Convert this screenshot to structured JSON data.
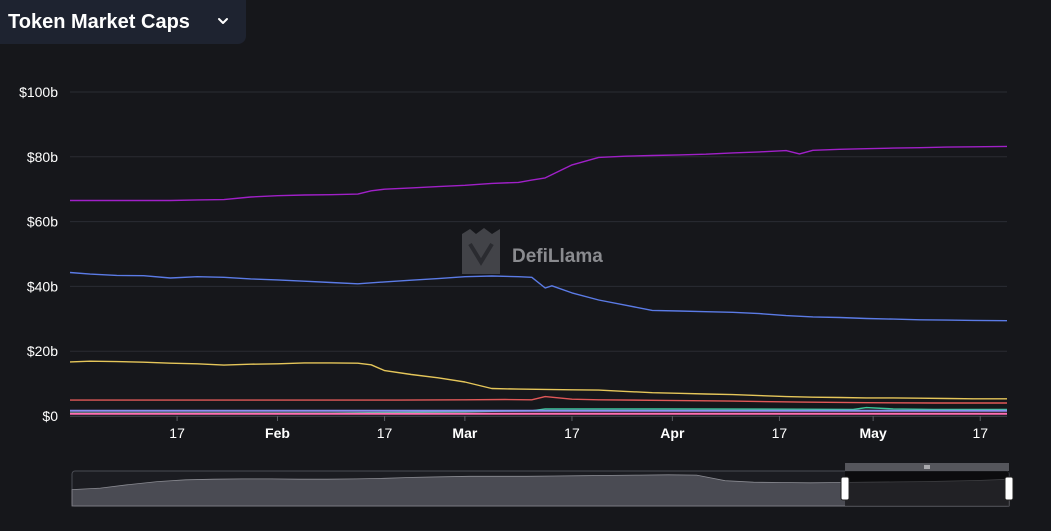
{
  "header": {
    "title": "Token Market Caps"
  },
  "watermark": "DefiLlama",
  "chart_data": {
    "type": "line",
    "ylim": [
      0,
      100
    ],
    "y_ticks": [
      {
        "value": 0,
        "label": "$0"
      },
      {
        "value": 20,
        "label": "$20b"
      },
      {
        "value": 40,
        "label": "$40b"
      },
      {
        "value": 60,
        "label": "$60b"
      },
      {
        "value": 80,
        "label": "$80b"
      },
      {
        "value": 100,
        "label": "$100b"
      }
    ],
    "xlim": [
      1,
      141
    ],
    "x_ticks": [
      {
        "value": 17,
        "label": "17",
        "bold": false
      },
      {
        "value": 32,
        "label": "Feb",
        "bold": true
      },
      {
        "value": 48,
        "label": "17",
        "bold": false
      },
      {
        "value": 60,
        "label": "Mar",
        "bold": true
      },
      {
        "value": 76,
        "label": "17",
        "bold": false
      },
      {
        "value": 91,
        "label": "Apr",
        "bold": true
      },
      {
        "value": 107,
        "label": "17",
        "bold": false
      },
      {
        "value": 121,
        "label": "May",
        "bold": true
      },
      {
        "value": 137,
        "label": "17",
        "bold": false
      }
    ],
    "grid": true,
    "series": [
      {
        "color": "#a020c8",
        "points": [
          [
            1,
            66.5
          ],
          [
            10,
            66.5
          ],
          [
            16,
            66.5
          ],
          [
            20,
            66.7
          ],
          [
            24,
            66.8
          ],
          [
            28,
            67.6
          ],
          [
            32,
            68.0
          ],
          [
            36,
            68.2
          ],
          [
            40,
            68.3
          ],
          [
            44,
            68.5
          ],
          [
            46,
            69.5
          ],
          [
            48,
            70.0
          ],
          [
            52,
            70.4
          ],
          [
            56,
            70.8
          ],
          [
            60,
            71.2
          ],
          [
            64,
            71.8
          ],
          [
            68,
            72.1
          ],
          [
            70,
            72.8
          ],
          [
            72,
            73.5
          ],
          [
            74,
            75.5
          ],
          [
            76,
            77.5
          ],
          [
            80,
            79.8
          ],
          [
            84,
            80.2
          ],
          [
            88,
            80.4
          ],
          [
            92,
            80.6
          ],
          [
            96,
            80.8
          ],
          [
            100,
            81.2
          ],
          [
            104,
            81.5
          ],
          [
            108,
            81.9
          ],
          [
            110,
            80.9
          ],
          [
            112,
            82.0
          ],
          [
            116,
            82.3
          ],
          [
            120,
            82.5
          ],
          [
            124,
            82.7
          ],
          [
            128,
            82.8
          ],
          [
            132,
            83.0
          ],
          [
            136,
            83.1
          ],
          [
            141,
            83.2
          ]
        ]
      },
      {
        "color": "#5b7be6",
        "points": [
          [
            1,
            44.3
          ],
          [
            4,
            43.8
          ],
          [
            8,
            43.4
          ],
          [
            12,
            43.3
          ],
          [
            16,
            42.6
          ],
          [
            20,
            43.0
          ],
          [
            24,
            42.8
          ],
          [
            28,
            42.3
          ],
          [
            32,
            42.0
          ],
          [
            36,
            41.6
          ],
          [
            40,
            41.2
          ],
          [
            44,
            40.8
          ],
          [
            48,
            41.4
          ],
          [
            52,
            41.9
          ],
          [
            56,
            42.4
          ],
          [
            60,
            43.0
          ],
          [
            64,
            43.2
          ],
          [
            68,
            43.0
          ],
          [
            70,
            42.8
          ],
          [
            72,
            39.5
          ],
          [
            73,
            40.2
          ],
          [
            76,
            38.0
          ],
          [
            80,
            35.8
          ],
          [
            84,
            34.2
          ],
          [
            88,
            32.6
          ],
          [
            92,
            32.4
          ],
          [
            96,
            32.2
          ],
          [
            100,
            32.0
          ],
          [
            104,
            31.6
          ],
          [
            108,
            31.0
          ],
          [
            112,
            30.6
          ],
          [
            116,
            30.4
          ],
          [
            120,
            30.1
          ],
          [
            124,
            29.9
          ],
          [
            128,
            29.7
          ],
          [
            132,
            29.6
          ],
          [
            136,
            29.5
          ],
          [
            141,
            29.4
          ]
        ]
      },
      {
        "color": "#e5c65a",
        "points": [
          [
            1,
            16.7
          ],
          [
            4,
            16.9
          ],
          [
            8,
            16.8
          ],
          [
            12,
            16.6
          ],
          [
            16,
            16.3
          ],
          [
            20,
            16.1
          ],
          [
            24,
            15.7
          ],
          [
            28,
            16.0
          ],
          [
            32,
            16.1
          ],
          [
            36,
            16.4
          ],
          [
            40,
            16.4
          ],
          [
            44,
            16.3
          ],
          [
            46,
            15.8
          ],
          [
            48,
            14.0
          ],
          [
            52,
            12.8
          ],
          [
            56,
            11.8
          ],
          [
            60,
            10.5
          ],
          [
            64,
            8.5
          ],
          [
            68,
            8.3
          ],
          [
            72,
            8.2
          ],
          [
            76,
            8.1
          ],
          [
            80,
            8.0
          ],
          [
            84,
            7.6
          ],
          [
            88,
            7.2
          ],
          [
            92,
            7.0
          ],
          [
            96,
            6.8
          ],
          [
            100,
            6.6
          ],
          [
            104,
            6.3
          ],
          [
            108,
            6.0
          ],
          [
            112,
            5.8
          ],
          [
            116,
            5.7
          ],
          [
            120,
            5.6
          ],
          [
            124,
            5.6
          ],
          [
            128,
            5.5
          ],
          [
            132,
            5.4
          ],
          [
            136,
            5.3
          ],
          [
            141,
            5.3
          ]
        ]
      },
      {
        "color": "#e05858",
        "points": [
          [
            1,
            4.9
          ],
          [
            10,
            4.9
          ],
          [
            20,
            4.9
          ],
          [
            30,
            4.9
          ],
          [
            40,
            4.9
          ],
          [
            50,
            4.9
          ],
          [
            60,
            5.0
          ],
          [
            66,
            5.1
          ],
          [
            70,
            5.0
          ],
          [
            72,
            6.0
          ],
          [
            76,
            5.2
          ],
          [
            80,
            5.0
          ],
          [
            90,
            4.8
          ],
          [
            100,
            4.6
          ],
          [
            110,
            4.3
          ],
          [
            120,
            4.1
          ],
          [
            130,
            4.0
          ],
          [
            141,
            4.0
          ]
        ]
      },
      {
        "color": "#3cc79a",
        "points": [
          [
            1,
            0.9
          ],
          [
            20,
            0.9
          ],
          [
            40,
            0.9
          ],
          [
            60,
            1.3
          ],
          [
            66,
            1.5
          ],
          [
            70,
            1.6
          ],
          [
            72,
            2.2
          ],
          [
            76,
            2.2
          ],
          [
            90,
            2.2
          ],
          [
            110,
            2.1
          ],
          [
            118,
            2.0
          ],
          [
            120,
            2.6
          ],
          [
            124,
            2.2
          ],
          [
            130,
            2.0
          ],
          [
            141,
            2.0
          ]
        ]
      },
      {
        "color": "#8e8ff0",
        "points": [
          [
            1,
            1.6
          ],
          [
            141,
            1.6
          ]
        ]
      },
      {
        "color": "#ff6fb3",
        "points": [
          [
            1,
            0.7
          ],
          [
            141,
            0.7
          ]
        ]
      }
    ],
    "overview": {
      "profile": [
        0.55,
        0.6,
        0.72,
        0.82,
        0.88,
        0.9,
        0.91,
        0.91,
        0.9,
        0.9,
        0.91,
        0.93,
        0.96,
        0.98,
        1.0,
        1.0,
        1.0,
        1.01,
        1.02,
        1.03,
        1.04,
        1.05,
        1.04,
        0.85,
        0.8,
        0.79,
        0.78,
        0.79,
        0.8,
        0.81,
        0.82,
        0.84,
        0.86,
        0.9
      ],
      "selection": [
        0.825,
        1.0
      ]
    }
  }
}
